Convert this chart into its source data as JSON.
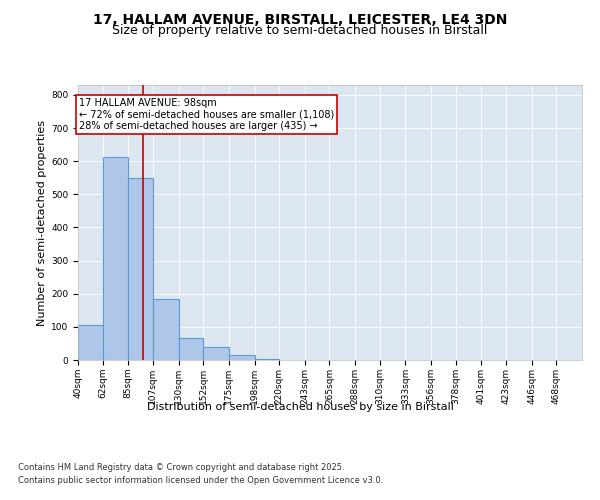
{
  "title_line1": "17, HALLAM AVENUE, BIRSTALL, LEICESTER, LE4 3DN",
  "title_line2": "Size of property relative to semi-detached houses in Birstall",
  "xlabel": "Distribution of semi-detached houses by size in Birstall",
  "ylabel": "Number of semi-detached properties",
  "property_size": 98,
  "annotation_text_line1": "17 HALLAM AVENUE: 98sqm",
  "annotation_text_line2": "← 72% of semi-detached houses are smaller (1,108)",
  "annotation_text_line3": "28% of semi-detached houses are larger (435) →",
  "bins": [
    40,
    62,
    85,
    107,
    130,
    152,
    175,
    198,
    220,
    243,
    265,
    288,
    310,
    333,
    356,
    378,
    401,
    423,
    446,
    468,
    491
  ],
  "counts": [
    107,
    612,
    550,
    185,
    65,
    40,
    15,
    3,
    0,
    0,
    0,
    0,
    0,
    0,
    0,
    0,
    0,
    0,
    0,
    0
  ],
  "bar_color": "#aec6e8",
  "bar_edge_color": "#5b9bd5",
  "vline_color": "#cc0000",
  "annotation_box_color": "#cc0000",
  "plot_bg_color": "#dce6f0",
  "ylim": [
    0,
    830
  ],
  "yticks": [
    0,
    100,
    200,
    300,
    400,
    500,
    600,
    700,
    800
  ],
  "footer_line1": "Contains HM Land Registry data © Crown copyright and database right 2025.",
  "footer_line2": "Contains public sector information licensed under the Open Government Licence v3.0.",
  "title_fontsize": 10,
  "subtitle_fontsize": 9,
  "axis_label_fontsize": 8,
  "tick_fontsize": 6.5,
  "annotation_fontsize": 7,
  "footer_fontsize": 6
}
